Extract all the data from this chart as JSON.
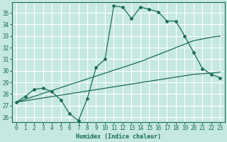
{
  "xlabel": "Humidex (Indice chaleur)",
  "bg_color": "#c5e8e0",
  "line_color": "#1a6b5a",
  "grid_color": "#ffffff",
  "xlim": [
    -0.5,
    23.5
  ],
  "ylim": [
    25.6,
    35.9
  ],
  "yticks": [
    26,
    27,
    28,
    29,
    30,
    31,
    32,
    33,
    34,
    35
  ],
  "xticks": [
    0,
    1,
    2,
    3,
    4,
    5,
    6,
    7,
    8,
    9,
    10,
    11,
    12,
    13,
    14,
    15,
    16,
    17,
    18,
    19,
    20,
    21,
    22,
    23
  ],
  "series1_x": [
    0,
    1,
    2,
    3,
    4,
    5,
    6,
    7,
    8,
    9,
    10,
    11,
    12,
    13,
    14,
    15,
    16,
    17,
    18,
    19,
    20,
    21,
    22,
    23
  ],
  "series1_y": [
    27.3,
    27.8,
    28.4,
    28.5,
    28.2,
    27.5,
    26.3,
    25.7,
    27.6,
    30.3,
    31.0,
    35.6,
    35.5,
    34.5,
    35.5,
    35.3,
    35.1,
    34.3,
    34.3,
    33.0,
    31.6,
    30.2,
    29.7,
    29.4
  ],
  "series2_x": [
    0,
    1,
    2,
    3,
    4,
    5,
    6,
    7,
    8,
    9,
    10,
    11,
    12,
    13,
    14,
    15,
    16,
    17,
    18,
    19,
    20,
    21,
    22,
    23
  ],
  "series2_y": [
    27.3,
    27.42,
    27.54,
    27.66,
    27.78,
    27.9,
    28.02,
    28.14,
    28.26,
    28.38,
    28.5,
    28.62,
    28.74,
    28.86,
    28.98,
    29.1,
    29.22,
    29.34,
    29.46,
    29.58,
    29.7,
    29.75,
    29.8,
    29.9
  ],
  "series3_x": [
    0,
    1,
    2,
    3,
    4,
    5,
    6,
    7,
    8,
    9,
    10,
    11,
    12,
    13,
    14,
    15,
    16,
    17,
    18,
    19,
    20,
    21,
    22,
    23
  ],
  "series3_y": [
    27.3,
    27.55,
    27.8,
    28.05,
    28.3,
    28.55,
    28.8,
    29.05,
    29.3,
    29.55,
    29.8,
    30.05,
    30.3,
    30.55,
    30.8,
    31.1,
    31.4,
    31.7,
    32.0,
    32.3,
    32.6,
    32.75,
    32.9,
    33.0
  ],
  "xlabel_fontsize": 6.0,
  "tick_fontsize": 5.5
}
